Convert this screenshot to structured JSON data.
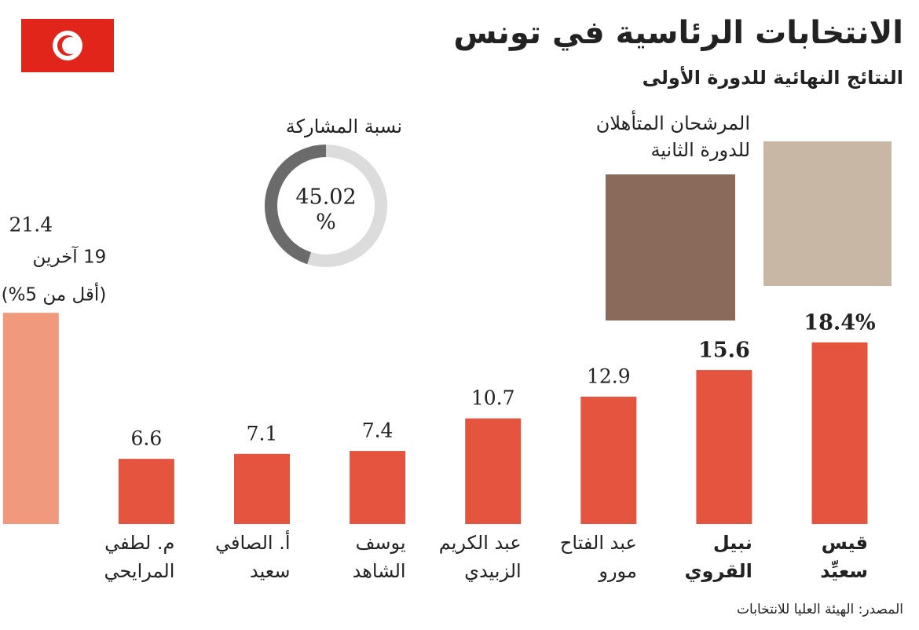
{
  "chart_data": {
    "type": "bar",
    "title": "الانتخابات الرئاسية في تونس",
    "subtitle": "النتائج النهائية للدورة الأولى",
    "categories": [
      [
        "قيس",
        "سعيِّد"
      ],
      [
        "نبيل",
        "القروي"
      ],
      [
        "عبد الفتاح",
        "مورو"
      ],
      [
        "عبد الكريم",
        "الزبيدي"
      ],
      [
        "يوسف",
        "الشاهد"
      ],
      [
        "أ. الصافي",
        "سعيد"
      ],
      [
        "م. لطفي",
        "المرايحي"
      ],
      []
    ],
    "values": [
      18.4,
      15.6,
      12.9,
      10.7,
      7.4,
      7.1,
      6.6,
      21.4
    ],
    "value_labels": [
      "18.4%",
      "15.6",
      "12.9",
      "10.7",
      "7.4",
      "7.1",
      "6.6",
      "21.4"
    ],
    "colors": [
      "#e5543f",
      "#e5543f",
      "#e5543f",
      "#e5543f",
      "#e5543f",
      "#e5543f",
      "#e5543f",
      "#f0997d"
    ],
    "others_note": [
      "19 آخرين",
      "(أقل من 5%)"
    ],
    "qualified_note": [
      "المرشحان المتأهلان",
      "للدورة الثانية"
    ],
    "turnout": {
      "title": "نسبة المشاركة",
      "value": 45.02,
      "max": 100,
      "value_label": "45.02",
      "unit": "%"
    },
    "source": "المصدر: الهيئة العليا للانتخابات"
  }
}
